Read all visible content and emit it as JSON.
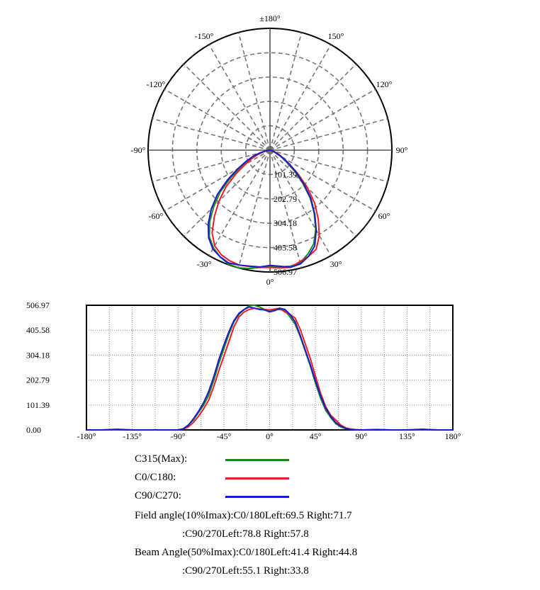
{
  "chart_data": [
    {
      "type": "polar",
      "title": "",
      "angle_labels": [
        "±180°",
        "150°",
        "120°",
        "90°",
        "60°",
        "30°",
        "0°",
        "-30°",
        "-60°",
        "-90°",
        "-120°",
        "-150°"
      ],
      "radial_labels": [
        "101.39",
        "202.79",
        "304.18",
        "405.58",
        "506.97"
      ],
      "rmax": 506.97,
      "angles": [
        -180,
        -165,
        -150,
        -135,
        -120,
        -105,
        -90,
        -85,
        -80,
        -75,
        -70,
        -65,
        -60,
        -55,
        -50,
        -45,
        -40,
        -35,
        -30,
        -25,
        -20,
        -15,
        -10,
        -5,
        0,
        5,
        10,
        15,
        20,
        25,
        30,
        35,
        40,
        45,
        50,
        55,
        60,
        65,
        70,
        75,
        80,
        85,
        90,
        105,
        120,
        135,
        150,
        165,
        180
      ],
      "series": [
        {
          "name": "C315(Max)",
          "values": [
            0,
            0,
            0,
            0,
            0,
            0,
            0,
            5,
            20,
            40,
            70,
            100,
            140,
            200,
            270,
            330,
            390,
            440,
            470,
            490,
            505,
            507,
            500,
            490,
            485,
            488,
            490,
            485,
            460,
            430,
            380,
            320,
            260,
            190,
            130,
            80,
            50,
            25,
            12,
            5,
            2,
            1,
            0,
            0,
            0,
            0,
            0,
            0,
            0
          ]
        },
        {
          "name": "C0/C180",
          "values": [
            0,
            0,
            3,
            0,
            0,
            0,
            0,
            3,
            12,
            30,
            55,
            85,
            120,
            175,
            240,
            300,
            360,
            420,
            460,
            480,
            490,
            495,
            492,
            490,
            488,
            492,
            495,
            480,
            470,
            455,
            410,
            350,
            290,
            220,
            150,
            95,
            60,
            40,
            20,
            8,
            3,
            1,
            0,
            2,
            0,
            0,
            3,
            0,
            0
          ]
        },
        {
          "name": "C90/C270",
          "values": [
            0,
            0,
            2,
            0,
            0,
            0,
            0,
            4,
            18,
            45,
            75,
            110,
            155,
            215,
            285,
            345,
            400,
            445,
            475,
            490,
            500,
            495,
            490,
            488,
            480,
            485,
            495,
            490,
            470,
            440,
            385,
            325,
            265,
            200,
            140,
            90,
            55,
            30,
            15,
            6,
            2,
            1,
            0,
            0,
            0,
            0,
            2,
            0,
            0
          ]
        }
      ]
    },
    {
      "type": "line",
      "title": "",
      "xlabel": "",
      "ylabel": "",
      "x_tick_labels": [
        "-180°",
        "-135°",
        "-90°",
        "-45°",
        "0°",
        "45°",
        "90°",
        "135°",
        "180°"
      ],
      "y_tick_labels": [
        "0.00",
        "101.39",
        "202.79",
        "304.18",
        "405.58",
        "506.97"
      ],
      "xlim": [
        -180,
        180
      ],
      "ylim": [
        0,
        506.97
      ],
      "grid": true,
      "series_ref": "same as polar series"
    }
  ],
  "legend": {
    "items": [
      {
        "label": "C315(Max):",
        "color": "#1a8a1a"
      },
      {
        "label": "C0/C180:",
        "color": "#ee1c24"
      },
      {
        "label": "C90/C270:",
        "color": "#1a1acc"
      }
    ]
  },
  "info": {
    "field_1": "Field angle(10%Imax):C0/180Left:69.5 Right:71.7",
    "field_2": ":C90/270Left:78.8 Right:57.8",
    "beam_1": "Beam Angle(50%Imax):C0/180Left:41.4 Right:44.8",
    "beam_2": ":C90/270Left:55.1 Right:33.8"
  }
}
